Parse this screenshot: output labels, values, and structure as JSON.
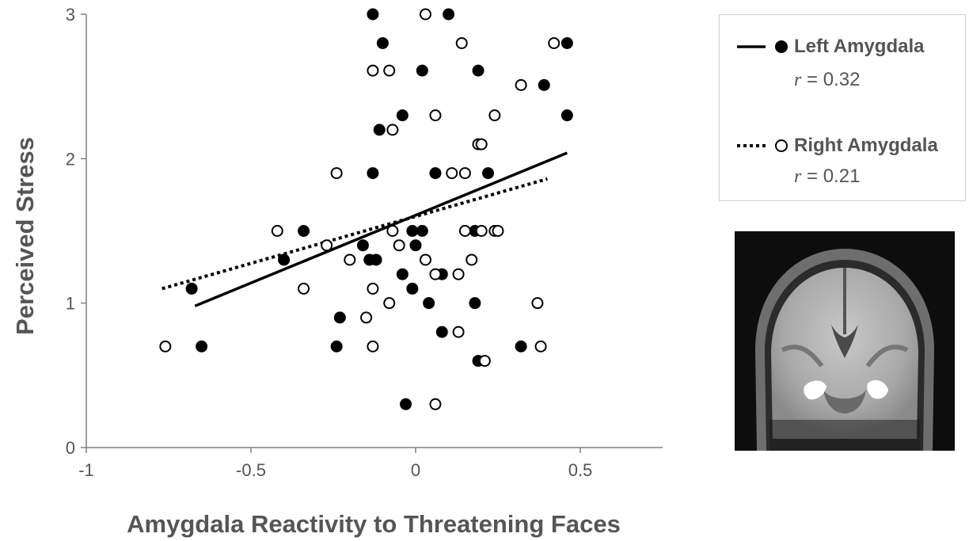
{
  "chart_data": {
    "type": "scatter",
    "xlabel": "Amygdala Reactivity to Threatening Faces",
    "ylabel": "Perceived Stress",
    "xlim": [
      -1,
      0.75
    ],
    "ylim": [
      0,
      3
    ],
    "x_ticks": [
      "-1",
      "-0.5",
      "0",
      "0.5"
    ],
    "x_tick_values": [
      -1,
      -0.5,
      0,
      0.5
    ],
    "y_ticks": [
      "0",
      "1",
      "2",
      "3"
    ],
    "y_tick_values": [
      0,
      1,
      2,
      3
    ],
    "grid": false,
    "legend_position": "top-right",
    "series": [
      {
        "name": "Left Amygdala",
        "r_label": "r",
        "r_value": "= 0.32",
        "marker": "filled-circle",
        "line_style": "solid",
        "color": "#000000",
        "trend": {
          "x": [
            -0.67,
            0.46
          ],
          "y": [
            0.98,
            2.04
          ]
        },
        "points": [
          [
            -0.13,
            3.0
          ],
          [
            0.1,
            3.0
          ],
          [
            -0.1,
            2.8
          ],
          [
            0.46,
            2.8
          ],
          [
            0.02,
            2.61
          ],
          [
            0.19,
            2.61
          ],
          [
            0.39,
            2.51
          ],
          [
            -0.04,
            2.3
          ],
          [
            0.46,
            2.3
          ],
          [
            -0.11,
            2.2
          ],
          [
            -0.13,
            1.9
          ],
          [
            0.06,
            1.9
          ],
          [
            0.22,
            1.9
          ],
          [
            -0.34,
            1.5
          ],
          [
            -0.01,
            1.5
          ],
          [
            0.02,
            1.5
          ],
          [
            0.18,
            1.5
          ],
          [
            -0.4,
            1.3
          ],
          [
            -0.14,
            1.3
          ],
          [
            -0.12,
            1.3
          ],
          [
            -0.16,
            1.4
          ],
          [
            0.0,
            1.4
          ],
          [
            -0.04,
            1.2
          ],
          [
            0.08,
            1.2
          ],
          [
            -0.68,
            1.1
          ],
          [
            -0.01,
            1.1
          ],
          [
            0.04,
            1.0
          ],
          [
            0.18,
            1.0
          ],
          [
            -0.23,
            0.9
          ],
          [
            0.08,
            0.8
          ],
          [
            -0.65,
            0.7
          ],
          [
            -0.24,
            0.7
          ],
          [
            0.32,
            0.7
          ],
          [
            0.19,
            0.6
          ],
          [
            -0.03,
            0.3
          ]
        ]
      },
      {
        "name": "Right Amygdala",
        "r_label": "r",
        "r_value": "= 0.21",
        "marker": "open-circle",
        "line_style": "dotted",
        "color": "#000000",
        "trend": {
          "x": [
            -0.77,
            0.4
          ],
          "y": [
            1.1,
            1.86
          ]
        },
        "points": [
          [
            0.03,
            3.0
          ],
          [
            0.14,
            2.8
          ],
          [
            0.42,
            2.8
          ],
          [
            -0.13,
            2.61
          ],
          [
            -0.08,
            2.61
          ],
          [
            0.32,
            2.51
          ],
          [
            0.06,
            2.3
          ],
          [
            0.24,
            2.3
          ],
          [
            -0.07,
            2.2
          ],
          [
            0.19,
            2.1
          ],
          [
            0.2,
            2.1
          ],
          [
            -0.24,
            1.9
          ],
          [
            0.11,
            1.9
          ],
          [
            0.15,
            1.9
          ],
          [
            -0.42,
            1.5
          ],
          [
            -0.07,
            1.5
          ],
          [
            0.15,
            1.5
          ],
          [
            0.2,
            1.5
          ],
          [
            0.24,
            1.5
          ],
          [
            0.25,
            1.5
          ],
          [
            -0.27,
            1.4
          ],
          [
            -0.05,
            1.4
          ],
          [
            -0.2,
            1.3
          ],
          [
            0.03,
            1.3
          ],
          [
            0.17,
            1.3
          ],
          [
            0.06,
            1.2
          ],
          [
            0.13,
            1.2
          ],
          [
            -0.34,
            1.1
          ],
          [
            -0.13,
            1.1
          ],
          [
            -0.08,
            1.0
          ],
          [
            0.37,
            1.0
          ],
          [
            -0.15,
            0.9
          ],
          [
            0.13,
            0.8
          ],
          [
            -0.76,
            0.7
          ],
          [
            -0.13,
            0.7
          ],
          [
            0.38,
            0.7
          ],
          [
            0.21,
            0.6
          ],
          [
            0.06,
            0.3
          ]
        ]
      }
    ]
  }
}
